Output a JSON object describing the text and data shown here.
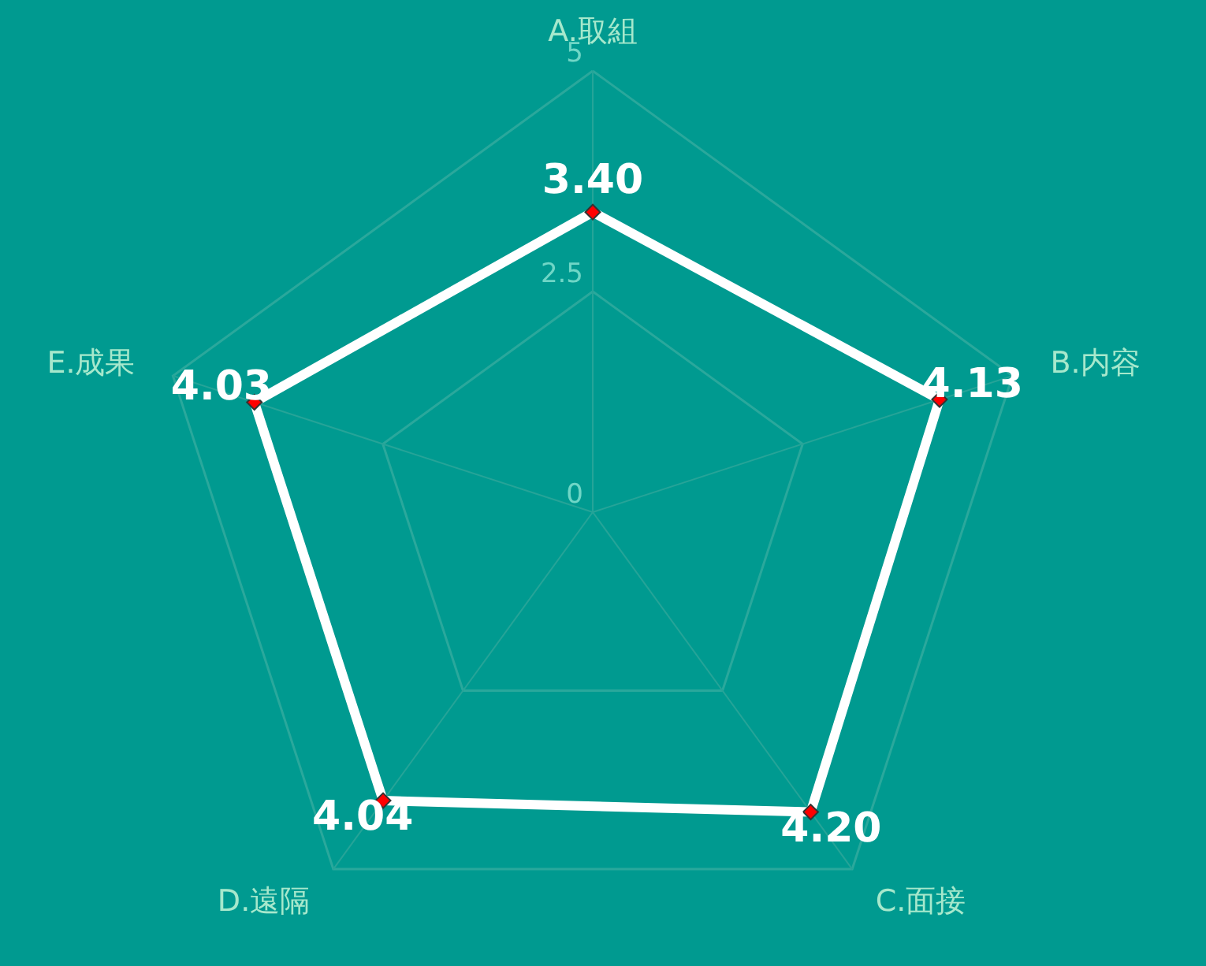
{
  "chart_data": {
    "type": "radar",
    "categories": [
      "A.取組",
      "B.内容",
      "C.面接",
      "D.遠隔",
      "E.成果"
    ],
    "series": [
      {
        "color": "#ffffff",
        "values": [
          3.4,
          4.13,
          4.2,
          4.04,
          4.03
        ],
        "value_labels": [
          "3.40",
          "4.13",
          "4.20",
          "4.04",
          "4.03"
        ]
      }
    ],
    "ylim": [
      0,
      5
    ],
    "yticks": [
      0,
      2.5,
      5
    ],
    "grid": true,
    "marker": "diamond"
  }
}
